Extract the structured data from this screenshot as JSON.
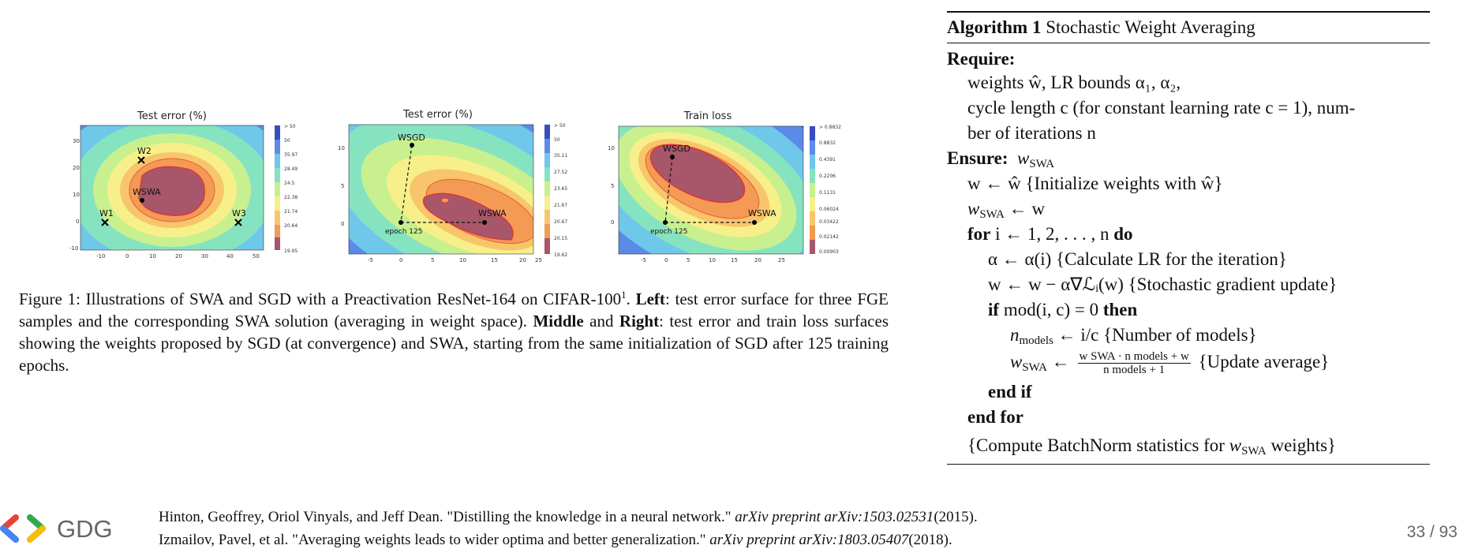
{
  "figure": {
    "panels": [
      {
        "title": "Test error (%)",
        "x_ticks": [
          "-10",
          "0",
          "10",
          "20",
          "30",
          "40",
          "50"
        ],
        "y_ticks": [
          "30",
          "20",
          "10",
          "0",
          "-10"
        ],
        "colorbar_labels": [
          "> 50",
          "50",
          "35.97",
          "28.49",
          "24.5",
          "22.38",
          "21.74",
          "20.64",
          "19.95"
        ],
        "point_labels": [
          "W2",
          "WSWA",
          "W1",
          "W3"
        ],
        "dashed_label": ""
      },
      {
        "title": "Test error (%)",
        "x_ticks": [
          "-5",
          "0",
          "5",
          "10",
          "15",
          "20",
          "25"
        ],
        "y_ticks": [
          "10",
          "5",
          "0"
        ],
        "colorbar_labels": [
          "> 50",
          "50",
          "35.11",
          "27.52",
          "23.65",
          "21.67",
          "20.67",
          "20.15",
          "19.62"
        ],
        "point_labels": [
          "WSGD",
          "WSWA"
        ],
        "dashed_label": "epoch 125"
      },
      {
        "title": "Train loss",
        "x_ticks": [
          "-5",
          "0",
          "5",
          "10",
          "15",
          "20",
          "25"
        ],
        "y_ticks": [
          "10",
          "5",
          "0"
        ],
        "colorbar_labels": [
          "> 0.8832",
          "0.8832",
          "0.4391",
          "0.2206",
          "0.1131",
          "0.06024",
          "0.03422",
          "0.02142",
          "0.00903"
        ],
        "point_labels": [
          "WSGD",
          "WSWA"
        ],
        "dashed_label": "epoch 125"
      }
    ],
    "colors": [
      "#3b4cc0",
      "#5b8be6",
      "#6fc7ea",
      "#86e3c0",
      "#c8f08f",
      "#f7f08a",
      "#f9c56a",
      "#f39a55",
      "#a8576a"
    ],
    "caption": {
      "prefix": "Figure 1: Illustrations of SWA and SGD with a Preactivation ResNet-164 on CIFAR-100",
      "superscript": "1",
      "left_label": "Left",
      "left_text": ": test error surface for three FGE samples and the corresponding SWA solution (averaging in weight space).",
      "middle_label": "Middle",
      "and_text": " and ",
      "right_label": "Right",
      "right_text": ": test error and train loss surfaces showing the weights proposed by SGD (at convergence) and SWA, starting from the same initialization of SGD after 125 training epochs."
    }
  },
  "algorithm": {
    "title_bold": "Algorithm 1",
    "title_rest": " Stochastic Weight Averaging",
    "require": "Require:",
    "require_line1": "weights ŵ, LR bounds α₁, α₂,",
    "require_line2": "cycle length c (for constant learning rate c = 1), num-",
    "require_line3": "ber of iterations n",
    "ensure": "Ensure:",
    "ensure_var": "w",
    "swa_sub": "SWA",
    "line_init": "w ← ŵ {Initialize weights with ŵ}",
    "line_swa_init_rest": " ← w",
    "for_kw": "for",
    "for_mid": " i ← 1, 2, . . . , n ",
    "do_kw": "do",
    "line_alpha": "α ← α(i) {Calculate LR for the iteration}",
    "line_grad": "w ← w − α∇ℒᵢ(w) {Stochastic gradient update}",
    "if_kw": "if",
    "if_mid": " mod(i, c) = 0 ",
    "then_kw": "then",
    "models_sub": "models",
    "line_models_rest": " ← i/c {Number of models}",
    "frac_num": "w SWA · n models + w",
    "frac_den": "n models + 1",
    "update_comment": "{Update average}",
    "endif": "end if",
    "endfor": "end for",
    "batchnorm_prefix": "{Compute BatchNorm statistics for ",
    "batchnorm_suffix": " weights}"
  },
  "footer": {
    "logo_text": "GDG",
    "ref1_text": "Hinton, Geoffrey, Oriol Vinyals, and Jeff Dean. \"Distilling the knowledge in a neural network.\" ",
    "ref1_venue": "arXiv preprint arXiv:1503.02531",
    "ref1_year": "(2015).",
    "ref2_text": "Izmailov, Pavel, et al. \"Averaging weights leads to wider optima and better generalization.\" ",
    "ref2_venue": "arXiv preprint arXiv:1803.05407",
    "ref2_year": "(2018).",
    "page": "33 / 93"
  }
}
